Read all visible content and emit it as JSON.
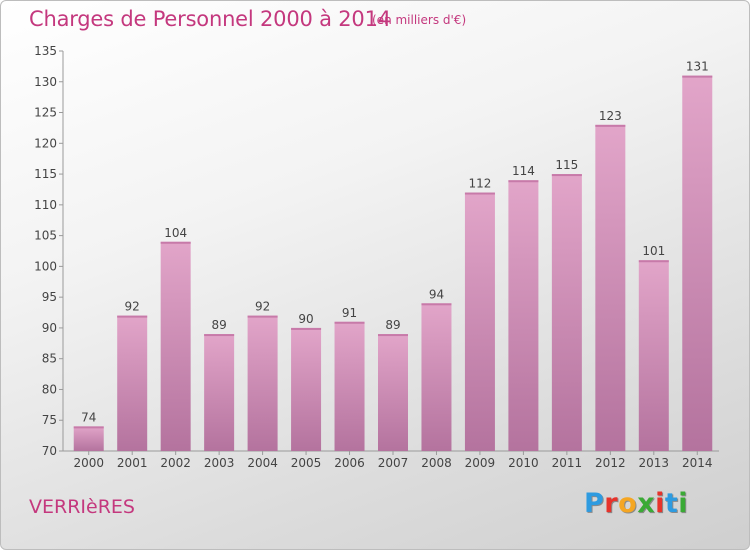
{
  "header": {
    "title": "Charges de Personnel 2000 à 2014",
    "subtitle": "(en milliers d'€)"
  },
  "footer": {
    "commune": "VERRIèRES",
    "logo_letters": [
      "P",
      "r",
      "o",
      "x",
      "i",
      "t",
      "i"
    ],
    "logo_colors": [
      "#2e9be0",
      "#e7332b",
      "#f5a623",
      "#3aaa35",
      "#e7332b",
      "#2e9be0",
      "#3aaa35"
    ]
  },
  "chart_data": {
    "type": "bar",
    "categories": [
      "2000",
      "2001",
      "2002",
      "2003",
      "2004",
      "2005",
      "2006",
      "2007",
      "2008",
      "2009",
      "2010",
      "2011",
      "2012",
      "2013",
      "2014"
    ],
    "values": [
      74,
      92,
      104,
      89,
      92,
      90,
      91,
      89,
      94,
      112,
      114,
      115,
      123,
      101,
      131
    ],
    "ylim": [
      70,
      135
    ],
    "yticks": [
      70,
      75,
      80,
      85,
      90,
      95,
      100,
      105,
      110,
      115,
      120,
      125,
      130,
      135
    ],
    "grid": false,
    "bar_color": "#d98fba",
    "label_color": "#444444"
  }
}
